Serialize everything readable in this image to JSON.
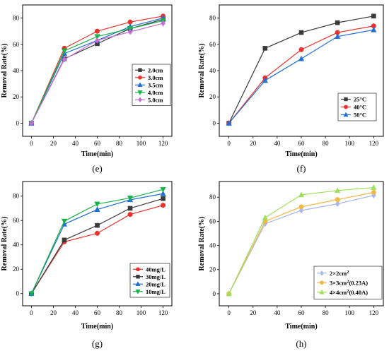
{
  "chart_data": [
    {
      "type": "line",
      "panel_label": "(e)",
      "xlabel": "Time(min)",
      "ylabel": "Removal Rate(%)",
      "xlim": [
        -8,
        128
      ],
      "ylim": [
        -10,
        90
      ],
      "xticks": [
        0,
        20,
        40,
        60,
        80,
        100,
        120
      ],
      "yticks": [
        0,
        20,
        40,
        60,
        80
      ],
      "legend_position": "center-right",
      "x": [
        0,
        30,
        60,
        90,
        120
      ],
      "series": [
        {
          "name": "2.0cm",
          "color": "#3a3a3a",
          "marker": "square",
          "values": [
            0,
            49,
            60.5,
            72,
            79
          ]
        },
        {
          "name": "3.0cm",
          "color": "#e8322b",
          "marker": "circle",
          "values": [
            0,
            57,
            70,
            77,
            81.5
          ]
        },
        {
          "name": "3.5cm",
          "color": "#1f6fd6",
          "marker": "triangle-up",
          "values": [
            0,
            53,
            63,
            73.5,
            80
          ]
        },
        {
          "name": "4.0cm",
          "color": "#19b24a",
          "marker": "triangle-down",
          "values": [
            0,
            55,
            66,
            72,
            78
          ]
        },
        {
          "name": "5.0cm",
          "color": "#c46fd6",
          "marker": "diamond",
          "values": [
            0,
            48.5,
            63,
            69.5,
            76
          ]
        }
      ]
    },
    {
      "type": "line",
      "panel_label": "(f)",
      "xlabel": "Time(min)",
      "ylabel": "Removal Rate(%)",
      "xlim": [
        -8,
        128
      ],
      "ylim": [
        -10,
        90
      ],
      "xticks": [
        0,
        20,
        40,
        60,
        80,
        100,
        120
      ],
      "yticks": [
        0,
        20,
        40,
        60,
        80
      ],
      "legend_position": "center-right",
      "x": [
        0,
        30,
        60,
        90,
        120
      ],
      "series": [
        {
          "name": "25°C",
          "color": "#3a3a3a",
          "marker": "square",
          "values": [
            0,
            57,
            69,
            76.5,
            81.5
          ]
        },
        {
          "name": "40°C",
          "color": "#e8322b",
          "marker": "circle",
          "values": [
            0,
            34.5,
            56,
            69,
            74
          ]
        },
        {
          "name": "50°C",
          "color": "#1f6fd6",
          "marker": "triangle-up",
          "values": [
            0,
            32.5,
            49,
            66,
            71
          ]
        }
      ]
    },
    {
      "type": "line",
      "panel_label": "(g)",
      "xlabel": "Time(min)",
      "ylabel": "Removal Rate(%)",
      "xlim": [
        -8,
        128
      ],
      "ylim": [
        -10,
        92
      ],
      "xticks": [
        0,
        20,
        40,
        60,
        80,
        100,
        120
      ],
      "yticks": [
        0,
        20,
        40,
        60,
        80
      ],
      "legend_position": "center-right",
      "x": [
        0,
        30,
        60,
        90,
        120
      ],
      "series": [
        {
          "name": "40mg/L",
          "color": "#e8322b",
          "marker": "circle",
          "values": [
            0,
            42.5,
            49.5,
            65,
            72.5
          ]
        },
        {
          "name": "30mg/L",
          "color": "#3a3a3a",
          "marker": "square",
          "values": [
            0,
            44,
            56,
            70,
            78
          ]
        },
        {
          "name": "20mg/L",
          "color": "#1f6fd6",
          "marker": "triangle-up",
          "values": [
            0,
            57,
            69,
            77,
            82
          ]
        },
        {
          "name": "10mg/L",
          "color": "#19b24a",
          "marker": "triangle-down",
          "values": [
            0,
            59.5,
            73.5,
            78.5,
            85.5
          ]
        }
      ]
    },
    {
      "type": "line",
      "panel_label": "(h)",
      "xlabel": "Time(min)",
      "ylabel": "Removal Rate(%)",
      "xlim": [
        -8,
        128
      ],
      "ylim": [
        -10,
        93
      ],
      "xticks": [
        0,
        20,
        40,
        60,
        80,
        100,
        120
      ],
      "yticks": [
        0,
        20,
        40,
        60,
        80
      ],
      "legend_position": "bottom-right",
      "x": [
        0,
        30,
        60,
        90,
        120
      ],
      "series": [
        {
          "name": "2×2cm",
          "name_sup": "2",
          "color": "#a9b8ee",
          "marker": "diamond",
          "values": [
            0,
            58,
            69,
            74.5,
            81.5
          ]
        },
        {
          "name": "3×3cm",
          "name_sup": "2",
          "name_suffix": "(0.23A)",
          "color": "#f2b84a",
          "marker": "circle",
          "values": [
            0,
            60,
            72,
            78,
            84
          ]
        },
        {
          "name": "4×4cm",
          "name_sup": "2",
          "name_suffix": "(0.40A)",
          "color": "#9fe05a",
          "marker": "triangle-up",
          "values": [
            0,
            63,
            82,
            85.5,
            88
          ]
        }
      ]
    }
  ]
}
